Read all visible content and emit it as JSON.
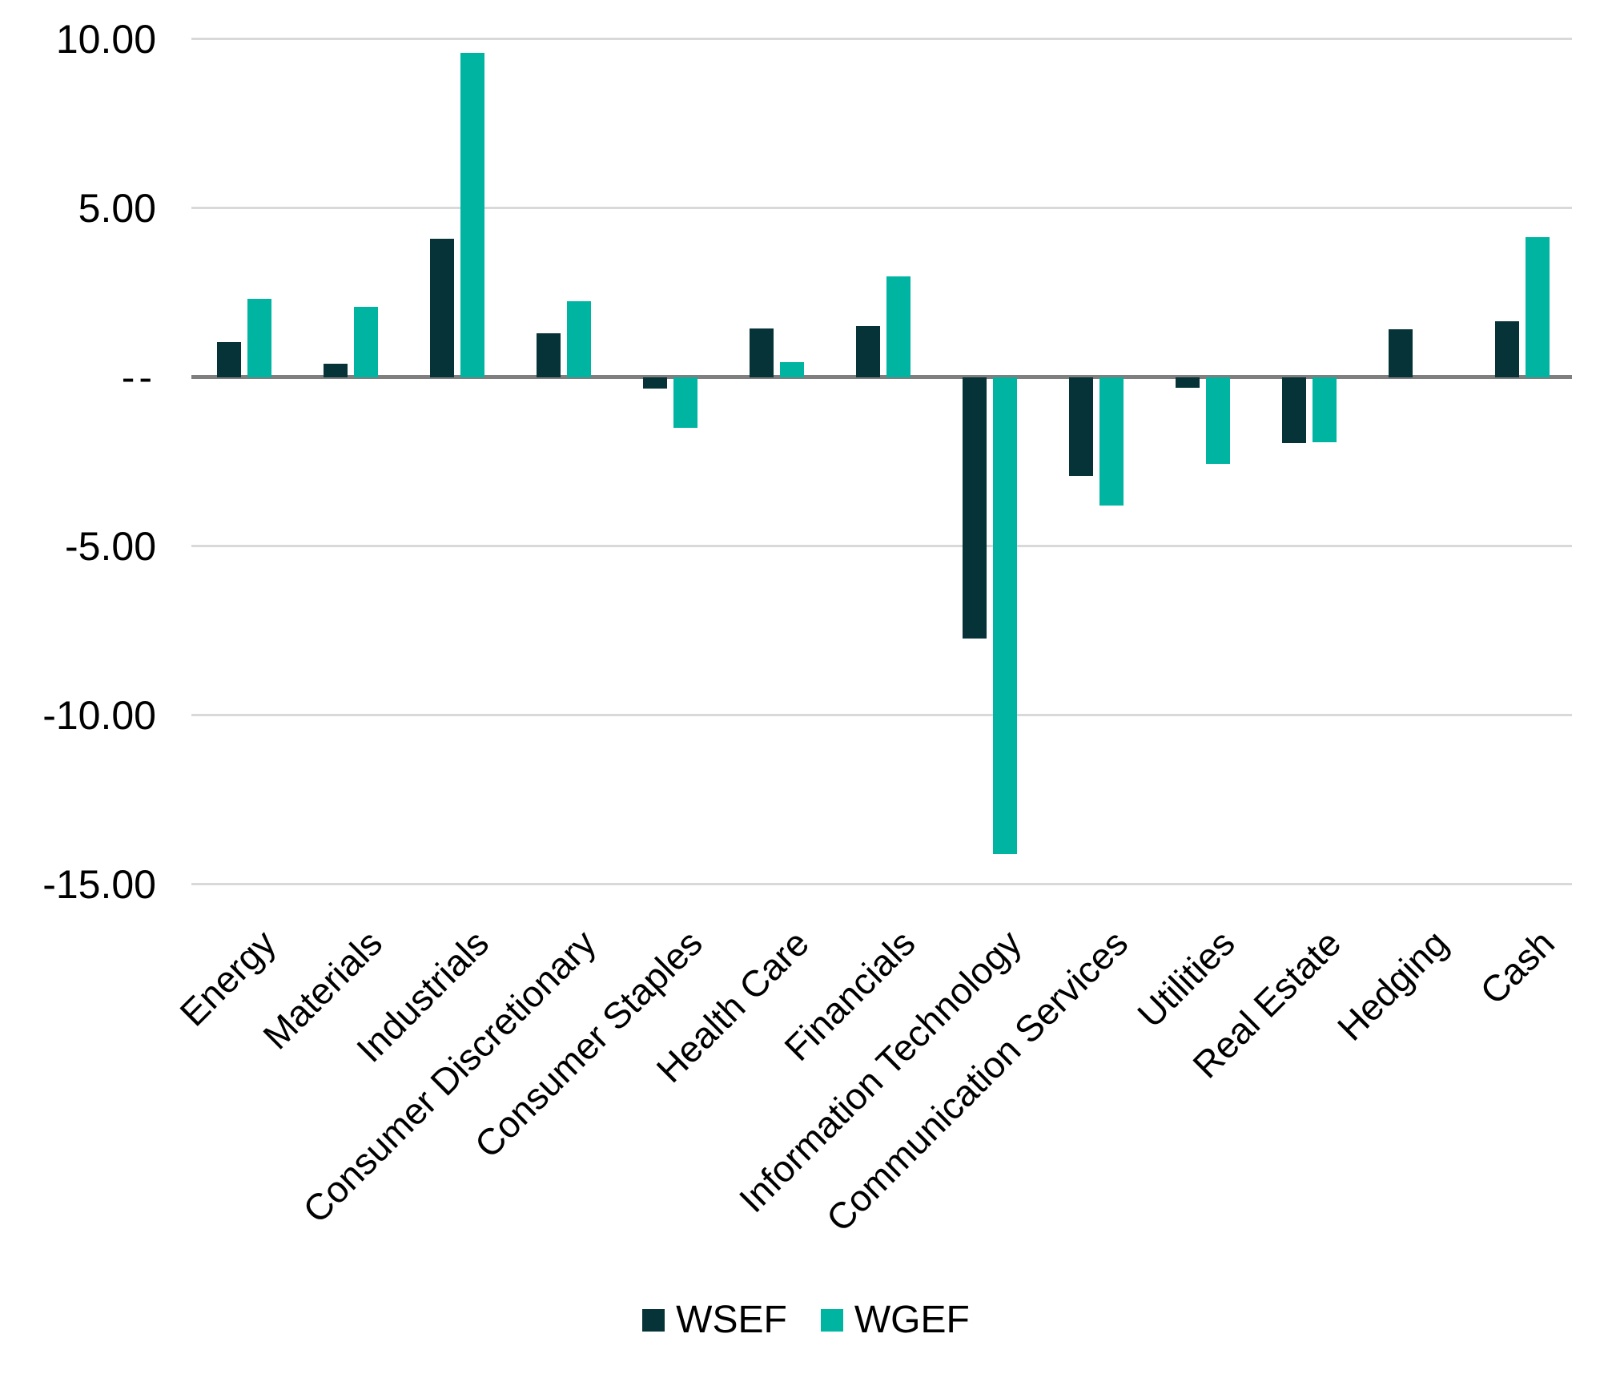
{
  "chart_data": {
    "type": "bar",
    "title": "",
    "xlabel": "",
    "ylabel": "",
    "categories": [
      "Energy",
      "Materials",
      "Industrials",
      "Consumer Discretionary",
      "Consumer Staples",
      "Health Care",
      "Financials",
      "Information Technology",
      "Communication Services",
      "Utilities",
      "Real Estate",
      "Hedging",
      "Cash"
    ],
    "series": [
      {
        "name": "WSEF",
        "color": "#053337",
        "values": [
          1.03,
          0.4,
          4.1,
          1.3,
          -0.35,
          1.44,
          1.52,
          -7.73,
          -2.92,
          -0.31,
          -1.94,
          1.42,
          1.65
        ]
      },
      {
        "name": "WGEF",
        "color": "#00b4a2",
        "values": [
          2.32,
          2.07,
          9.6,
          2.25,
          -1.51,
          0.45,
          2.97,
          -14.1,
          -3.81,
          -2.57,
          -1.93,
          0,
          4.14
        ]
      }
    ],
    "y_ticks": [
      {
        "value": 10,
        "label": "10.00"
      },
      {
        "value": 5,
        "label": "5.00"
      },
      {
        "value": 0,
        "label": "--"
      },
      {
        "value": -5,
        "label": "-5.00"
      },
      {
        "value": -10,
        "label": "-10.00"
      },
      {
        "value": -15,
        "label": "-15.00"
      }
    ],
    "ylim": [
      -15,
      10.5
    ],
    "grid": true,
    "legend_position": "bottom",
    "axis_color": "#7f7f7f",
    "gridline_color": "#d9d9d9",
    "background_color": "#ffffff"
  }
}
